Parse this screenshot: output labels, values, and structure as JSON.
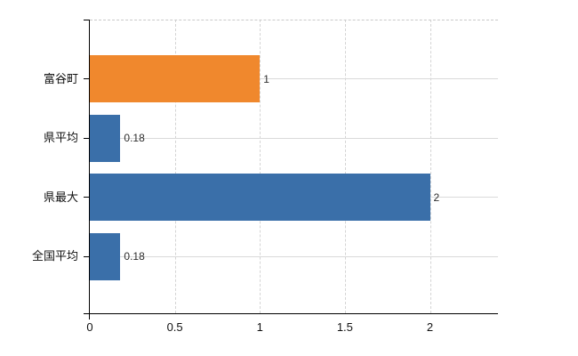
{
  "chart_data": {
    "type": "bar",
    "orientation": "horizontal",
    "title": "",
    "xlabel": "",
    "ylabel": "",
    "categories": [
      "富谷町",
      "県平均",
      "県最大",
      "全国平均"
    ],
    "values": [
      1,
      0.18,
      2,
      0.18
    ],
    "value_labels": [
      "1",
      "0.18",
      "2",
      "0.18"
    ],
    "bar_colors": [
      "#F0882D",
      "#3A6FA9",
      "#3A6FA9",
      "#3A6FA9"
    ],
    "x_tick_values": [
      0,
      0.5,
      1,
      1.5,
      2
    ],
    "x_tick_labels": [
      "0",
      "0.5",
      "1",
      "1.5",
      "2"
    ],
    "xlim": [
      0,
      2.4
    ],
    "grid": "on",
    "legend": "none",
    "axis_color": "#000000",
    "grid_color": "#d8d8d8"
  }
}
